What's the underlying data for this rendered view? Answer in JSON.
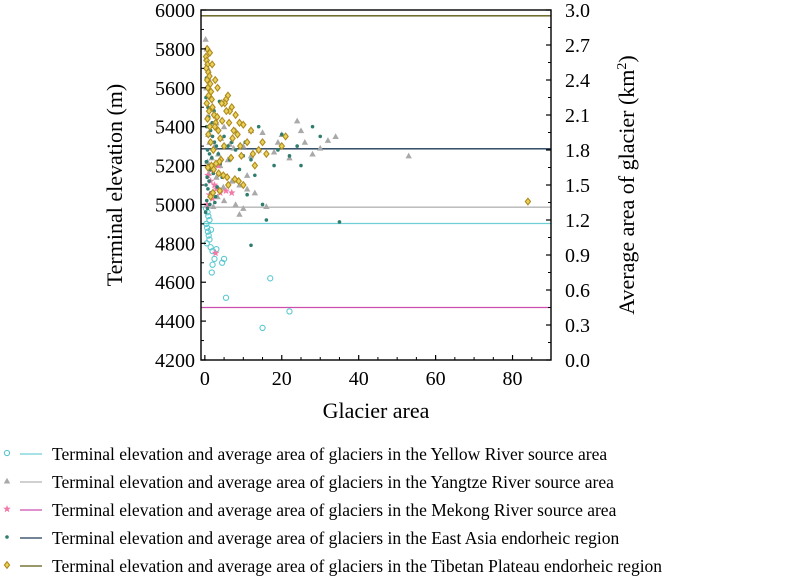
{
  "chart_data": {
    "type": "scatter",
    "xlabel": "Glacier area",
    "ylabel_left": "Terminal elevation (m)",
    "ylabel_right_main": "Average area of glacier (km",
    "ylabel_right_sup": "2",
    "ylabel_right_end": ")",
    "xlim": [
      -1,
      90
    ],
    "ylim_left": [
      4200,
      6000
    ],
    "ylim_right": [
      0.0,
      3.0
    ],
    "x_ticks": [
      "0",
      "20",
      "40",
      "60",
      "80"
    ],
    "x_tick_values": [
      0,
      20,
      40,
      60,
      80
    ],
    "y_left_ticks": [
      "4200",
      "4400",
      "4600",
      "4800",
      "5000",
      "5200",
      "5400",
      "5600",
      "5800",
      "6000"
    ],
    "y_left_tick_values": [
      4200,
      4400,
      4600,
      4800,
      5000,
      5200,
      5400,
      5600,
      5800,
      6000
    ],
    "y_right_ticks": [
      "0.0",
      "0.3",
      "0.6",
      "0.9",
      "1.2",
      "1.5",
      "1.8",
      "2.1",
      "2.4",
      "2.7",
      "3.0"
    ],
    "y_right_tick_values": [
      0.0,
      0.3,
      0.6,
      0.9,
      1.2,
      1.5,
      1.8,
      2.1,
      2.4,
      2.7,
      3.0
    ],
    "legend_position": "bottom",
    "series": [
      {
        "name": "Terminal elevation and average area of glaciers in the Yellow River source area",
        "marker": "circle",
        "color": "#5bc8d0",
        "line_color": "#6fcfd5",
        "average_area": 1.17,
        "points": [
          [
            0.4,
            4900
          ],
          [
            0.6,
            4880
          ],
          [
            0.8,
            4860
          ],
          [
            1.0,
            4840
          ],
          [
            1.2,
            4820
          ],
          [
            0.5,
            4800
          ],
          [
            0.7,
            4960
          ],
          [
            1.5,
            4780
          ],
          [
            2.0,
            4760
          ],
          [
            3.0,
            4770
          ],
          [
            2.5,
            4720
          ],
          [
            5,
            4720
          ],
          [
            4.5,
            4700
          ],
          [
            2,
            4690
          ],
          [
            1.8,
            4650
          ],
          [
            17,
            4620
          ],
          [
            5.5,
            4520
          ],
          [
            22,
            4450
          ],
          [
            15,
            4365
          ],
          [
            1.2,
            4920
          ],
          [
            0.9,
            4940
          ],
          [
            0.3,
            4980
          ],
          [
            1.6,
            4870
          ]
        ]
      },
      {
        "name": "Terminal elevation and average area of glaciers in the Yangtze River source area",
        "marker": "triangle",
        "color": "#a9a9a9",
        "line_color": "#b5b5b5",
        "average_area": 1.31,
        "points": [
          [
            0.2,
            5850
          ],
          [
            0.5,
            5800
          ],
          [
            0.3,
            5750
          ],
          [
            0.8,
            5700
          ],
          [
            1.0,
            5650
          ],
          [
            0.4,
            5600
          ],
          [
            1.5,
            5550
          ],
          [
            2.0,
            5500
          ],
          [
            0.6,
            5450
          ],
          [
            3,
            5420
          ],
          [
            5,
            5400
          ],
          [
            8,
            5380
          ],
          [
            12,
            5380
          ],
          [
            15,
            5370
          ],
          [
            20,
            5360
          ],
          [
            25,
            5380
          ],
          [
            32,
            5330
          ],
          [
            34,
            5350
          ],
          [
            53,
            5250
          ],
          [
            10,
            5300
          ],
          [
            14,
            5280
          ],
          [
            18,
            5270
          ],
          [
            22,
            5240
          ],
          [
            28,
            5260
          ],
          [
            6,
            5230
          ],
          [
            4,
            5200
          ],
          [
            2,
            5180
          ],
          [
            1,
            5160
          ],
          [
            3,
            5140
          ],
          [
            7,
            5120
          ],
          [
            9,
            5100
          ],
          [
            11,
            5080
          ],
          [
            13,
            5060
          ],
          [
            8,
            5000
          ],
          [
            10,
            4980
          ],
          [
            9,
            4950
          ],
          [
            16,
            4990
          ],
          [
            5,
            5020
          ],
          [
            2.5,
            5300
          ],
          [
            1.2,
            5320
          ],
          [
            0.9,
            5360
          ],
          [
            4.2,
            5340
          ],
          [
            6.5,
            5310
          ],
          [
            7.5,
            5290
          ],
          [
            3.5,
            5260
          ],
          [
            1.8,
            5240
          ],
          [
            0.7,
            5220
          ],
          [
            12,
            5250
          ],
          [
            19,
            5320
          ],
          [
            26,
            5320
          ],
          [
            30,
            5290
          ],
          [
            24,
            5430
          ],
          [
            11,
            5150
          ],
          [
            4.8,
            5090
          ],
          [
            3.3,
            5040
          ],
          [
            2.2,
            4990
          ]
        ]
      },
      {
        "name": "Terminal elevation and average area of glaciers in the Mekong River source area",
        "marker": "star",
        "color": "#f07aa8",
        "line_color": "#cc4fb0",
        "average_area": 0.45,
        "points": [
          [
            0.8,
            5150
          ],
          [
            1.5,
            5120
          ],
          [
            2.5,
            5100
          ],
          [
            3,
            5080
          ],
          [
            1.2,
            5050
          ],
          [
            2,
            5030
          ],
          [
            4,
            5060
          ],
          [
            5.5,
            5070
          ],
          [
            7,
            5060
          ],
          [
            2.8,
            4750
          ],
          [
            1.8,
            5180
          ],
          [
            3.5,
            5200
          ],
          [
            0.6,
            5000
          ]
        ]
      },
      {
        "name": "Terminal elevation and average area of glaciers in the East Asia endorheic region",
        "marker": "dot",
        "color": "#2e7d6f",
        "line_color": "#1d3a57",
        "average_area": 1.81,
        "points": [
          [
            0.2,
            5700
          ],
          [
            0.4,
            5650
          ],
          [
            0.6,
            5600
          ],
          [
            0.3,
            5550
          ],
          [
            0.8,
            5500
          ],
          [
            1.0,
            5450
          ],
          [
            0.5,
            5400
          ],
          [
            1.5,
            5380
          ],
          [
            2,
            5350
          ],
          [
            2.5,
            5320
          ],
          [
            3,
            5300
          ],
          [
            0.7,
            5280
          ],
          [
            1.2,
            5260
          ],
          [
            1.8,
            5240
          ],
          [
            0.4,
            5220
          ],
          [
            0.9,
            5200
          ],
          [
            1.4,
            5180
          ],
          [
            2.2,
            5160
          ],
          [
            0.6,
            5140
          ],
          [
            1.1,
            5120
          ],
          [
            0.3,
            5100
          ],
          [
            0.8,
            5080
          ],
          [
            1.6,
            5060
          ],
          [
            2.8,
            5040
          ],
          [
            0.5,
            5020
          ],
          [
            1.3,
            5000
          ],
          [
            0.7,
            4980
          ],
          [
            0.2,
            4960
          ],
          [
            3.5,
            5260
          ],
          [
            5,
            5350
          ],
          [
            6,
            5300
          ],
          [
            8,
            5280
          ],
          [
            10,
            5250
          ],
          [
            12,
            5230
          ],
          [
            14,
            5400
          ],
          [
            20,
            5360
          ],
          [
            22,
            5250
          ],
          [
            25,
            5200
          ],
          [
            28,
            5400
          ],
          [
            30,
            5350
          ],
          [
            35,
            4910
          ],
          [
            15,
            5000
          ],
          [
            16,
            4920
          ],
          [
            18,
            5200
          ],
          [
            13,
            5150
          ],
          [
            9,
            5180
          ],
          [
            7,
            5320
          ],
          [
            4,
            5210
          ],
          [
            3.2,
            5090
          ],
          [
            2.6,
            5010
          ],
          [
            11,
            5050
          ],
          [
            12,
            4790
          ],
          [
            4.5,
            5140
          ],
          [
            6.5,
            5230
          ],
          [
            19,
            5280
          ],
          [
            24,
            5300
          ],
          [
            8.5,
            5120
          ],
          [
            10.5,
            5320
          ],
          [
            1.9,
            5420
          ],
          [
            2.4,
            5480
          ],
          [
            3.8,
            5530
          ]
        ]
      },
      {
        "name": "Terminal elevation and average area of glaciers in the Tibetan Plateau endorheic region",
        "marker": "diamond",
        "color": "#b08a1e",
        "line_color": "#5e5a10",
        "average_area": 2.95,
        "points": [
          [
            0.3,
            5760
          ],
          [
            0.5,
            5740
          ],
          [
            0.7,
            5720
          ],
          [
            0.4,
            5700
          ],
          [
            0.9,
            5680
          ],
          [
            1.2,
            5660
          ],
          [
            0.6,
            5640
          ],
          [
            1.4,
            5620
          ],
          [
            0.8,
            5600
          ],
          [
            1.6,
            5580
          ],
          [
            1.0,
            5560
          ],
          [
            1.8,
            5540
          ],
          [
            0.5,
            5520
          ],
          [
            2.0,
            5500
          ],
          [
            1.1,
            5480
          ],
          [
            2.4,
            5460
          ],
          [
            0.7,
            5440
          ],
          [
            2.8,
            5420
          ],
          [
            1.3,
            5400
          ],
          [
            3.5,
            5380
          ],
          [
            0.9,
            5360
          ],
          [
            4,
            5340
          ],
          [
            1.5,
            5320
          ],
          [
            5,
            5300
          ],
          [
            2.2,
            5280
          ],
          [
            6,
            5560
          ],
          [
            5.5,
            5540
          ],
          [
            5.2,
            5520
          ],
          [
            7,
            5500
          ],
          [
            6.5,
            5480
          ],
          [
            8,
            5460
          ],
          [
            3.2,
            5450
          ],
          [
            4.5,
            5430
          ],
          [
            9,
            5420
          ],
          [
            10,
            5410
          ],
          [
            2.6,
            5400
          ],
          [
            12,
            5380
          ],
          [
            8.5,
            5360
          ],
          [
            7.2,
            5340
          ],
          [
            11,
            5320
          ],
          [
            21,
            5350
          ],
          [
            20,
            5300
          ],
          [
            14,
            5280
          ],
          [
            16,
            5260
          ],
          [
            9.5,
            5250
          ],
          [
            6.8,
            5240
          ],
          [
            4.2,
            5230
          ],
          [
            3.8,
            5220
          ],
          [
            2.9,
            5210
          ],
          [
            1.7,
            5200
          ],
          [
            0.8,
            5190
          ],
          [
            2.3,
            5180
          ],
          [
            3.6,
            5160
          ],
          [
            4.8,
            5150
          ],
          [
            5.8,
            5140
          ],
          [
            7.8,
            5130
          ],
          [
            8.8,
            5120
          ],
          [
            10,
            5100
          ],
          [
            84,
            5015
          ],
          [
            1.9,
            5720
          ],
          [
            1.3,
            5780
          ],
          [
            0.6,
            5800
          ],
          [
            2.7,
            5640
          ],
          [
            3.3,
            5600
          ],
          [
            4.4,
            5520
          ],
          [
            5.6,
            5480
          ],
          [
            6.3,
            5420
          ],
          [
            7.5,
            5380
          ],
          [
            9.2,
            5300
          ],
          [
            12.5,
            5260
          ],
          [
            15,
            5320
          ],
          [
            13,
            5200
          ],
          [
            6.1,
            5100
          ],
          [
            3.9,
            5070
          ],
          [
            2.1,
            5060
          ],
          [
            1.5,
            5040
          ]
        ]
      }
    ]
  }
}
